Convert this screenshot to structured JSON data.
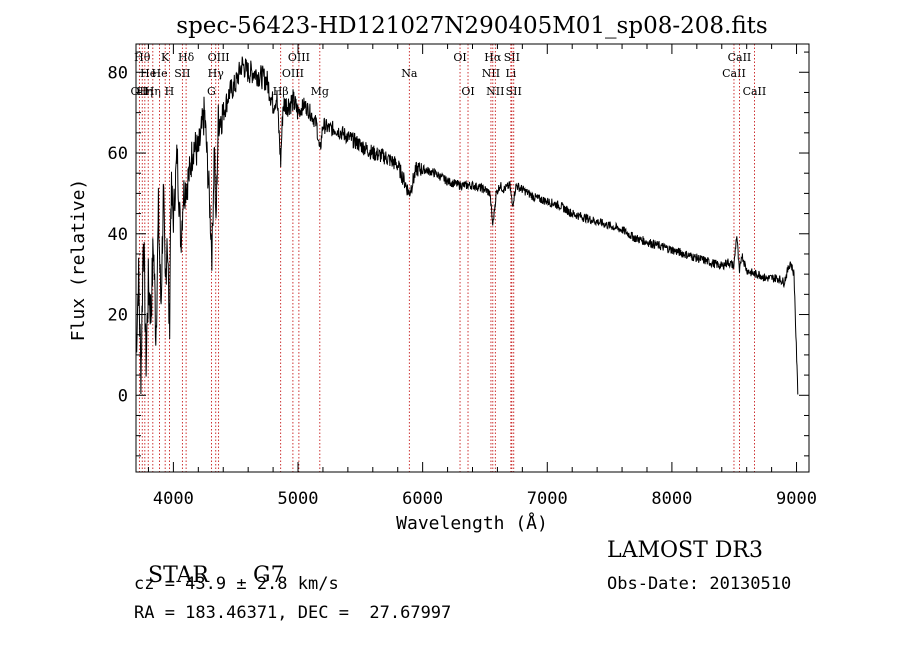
{
  "chart_data": {
    "type": "line",
    "title": "spec-56423-HD121027N290405M01_sp08-208.fits",
    "xlabel": "Wavelength (Å)",
    "ylabel": "Flux (relative)",
    "xlim": [
      3700,
      9100
    ],
    "ylim": [
      -19,
      87
    ],
    "x_ticks": [
      4000,
      5000,
      6000,
      7000,
      8000,
      9000
    ],
    "y_ticks": [
      0,
      20,
      40,
      60,
      80
    ],
    "grid": false,
    "series": [
      {
        "name": "flux",
        "color": "#000000",
        "x": [
          3700,
          3720,
          3740,
          3760,
          3780,
          3800,
          3820,
          3840,
          3860,
          3880,
          3900,
          3920,
          3935,
          3950,
          3968,
          3980,
          4000,
          4030,
          4060,
          4080,
          4102,
          4130,
          4160,
          4200,
          4250,
          4290,
          4310,
          4330,
          4340,
          4360,
          4400,
          4450,
          4500,
          4550,
          4600,
          4650,
          4700,
          4750,
          4800,
          4830,
          4861,
          4880,
          4920,
          4960,
          5000,
          5050,
          5100,
          5150,
          5175,
          5200,
          5250,
          5300,
          5400,
          5500,
          5600,
          5700,
          5800,
          5893,
          5950,
          6000,
          6100,
          6200,
          6300,
          6400,
          6500,
          6540,
          6563,
          6590,
          6620,
          6650,
          6700,
          6720,
          6750,
          6800,
          6900,
          7000,
          7100,
          7200,
          7300,
          7400,
          7500,
          7600,
          7700,
          7800,
          7900,
          8000,
          8100,
          8200,
          8300,
          8400,
          8450,
          8498,
          8520,
          8542,
          8560,
          8600,
          8662,
          8700,
          8750,
          8800,
          8850,
          8900,
          8950,
          8980,
          9000,
          9010
        ],
        "values": [
          10,
          30,
          5,
          42,
          8,
          28,
          20,
          38,
          15,
          45,
          22,
          50,
          25,
          42,
          15,
          50,
          44,
          60,
          38,
          50,
          52,
          55,
          62,
          60,
          70,
          48,
          35,
          64,
          40,
          68,
          70,
          75,
          77,
          82,
          80,
          80,
          79,
          78,
          72,
          74,
          58,
          72,
          72,
          73,
          70,
          72,
          70,
          67,
          60,
          67,
          66,
          66,
          64,
          62,
          60,
          59,
          57,
          50,
          56,
          56,
          55,
          53,
          52,
          52,
          51,
          50,
          42,
          50,
          52,
          51,
          52,
          47,
          52,
          51,
          49,
          48,
          47,
          45,
          44,
          43,
          42,
          41,
          39,
          38,
          37,
          36,
          35,
          34,
          33,
          32,
          33,
          32,
          40,
          30,
          35,
          31,
          30,
          30,
          29,
          29,
          29,
          28,
          33,
          30,
          10,
          1
        ]
      }
    ],
    "lines": [
      {
        "x": 3727,
        "label": "OII",
        "row": 3
      },
      {
        "x": 3750,
        "label": "Hθ",
        "row": 1
      },
      {
        "x": 3771,
        "label": "Hη",
        "row": 3
      },
      {
        "x": 3798,
        "label": "He",
        "row": 2
      },
      {
        "x": 3835,
        "label": "Hη",
        "row": 3
      },
      {
        "x": 3889,
        "label": "He",
        "row": 2
      },
      {
        "x": 3934,
        "label": "K",
        "row": 1
      },
      {
        "x": 3968,
        "label": "H",
        "row": 3
      },
      {
        "x": 4072,
        "label": "SII",
        "row": 2
      },
      {
        "x": 4102,
        "label": "Hδ",
        "row": 1
      },
      {
        "x": 4305,
        "label": "G",
        "row": 3
      },
      {
        "x": 4340,
        "label": "Hγ",
        "row": 2
      },
      {
        "x": 4363,
        "label": "OIII",
        "row": 1
      },
      {
        "x": 4861,
        "label": "Hβ",
        "row": 3
      },
      {
        "x": 4959,
        "label": "OIII",
        "row": 2
      },
      {
        "x": 5007,
        "label": "OIII",
        "row": 1
      },
      {
        "x": 5175,
        "label": "Mg",
        "row": 3
      },
      {
        "x": 5893,
        "label": "Na",
        "row": 2
      },
      {
        "x": 6300,
        "label": "OI",
        "row": 1
      },
      {
        "x": 6364,
        "label": "OI",
        "row": 3
      },
      {
        "x": 6548,
        "label": "NII",
        "row": 2
      },
      {
        "x": 6563,
        "label": "Hα",
        "row": 1
      },
      {
        "x": 6583,
        "label": "NII",
        "row": 3
      },
      {
        "x": 6708,
        "label": "Li",
        "row": 2
      },
      {
        "x": 6716,
        "label": "SII",
        "row": 1
      },
      {
        "x": 6731,
        "label": "SII",
        "row": 3
      },
      {
        "x": 8498,
        "label": "CaII",
        "row": 2
      },
      {
        "x": 8542,
        "label": "CaII",
        "row": 1
      },
      {
        "x": 8662,
        "label": "CaII",
        "row": 3
      }
    ]
  },
  "info": {
    "class": "STAR",
    "subclass": "G7",
    "survey": "LAMOST DR3",
    "redshift": "cz = 43.9 ± 2.8 km/s",
    "obs_date": "Obs-Date: 20130510",
    "coords": "RA = 183.46371, DEC =  27.67997"
  }
}
